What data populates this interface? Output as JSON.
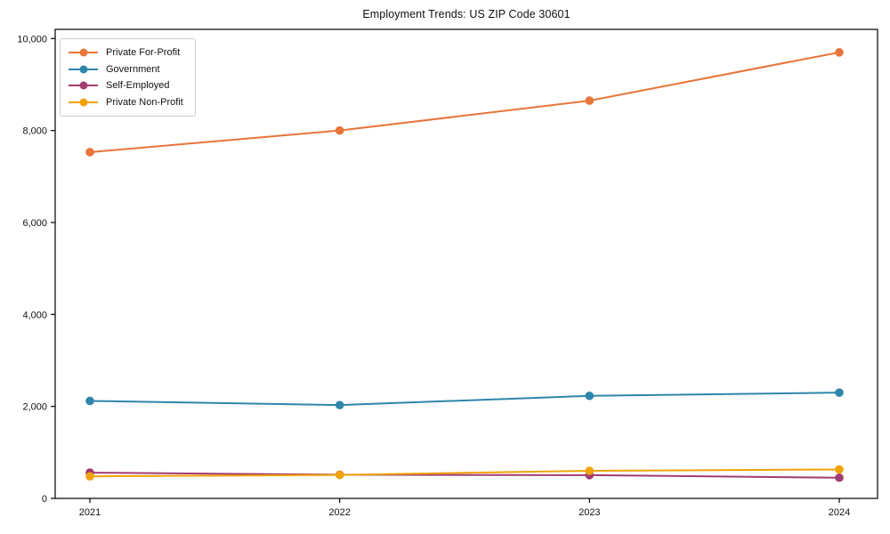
{
  "chart_data": {
    "type": "line",
    "title": "Employment Trends: US ZIP Code 30601",
    "x": [
      2021,
      2022,
      2023,
      2024
    ],
    "xtick_labels": [
      "2021",
      "2022",
      "2023",
      "2024"
    ],
    "yticks": [
      {
        "value": 0,
        "label": "0"
      },
      {
        "value": 2000,
        "label": "2,000"
      },
      {
        "value": 4000,
        "label": "4,000"
      },
      {
        "value": 6000,
        "label": "6,000"
      },
      {
        "value": 8000,
        "label": "8,000"
      },
      {
        "value": 10000,
        "label": "10,000"
      }
    ],
    "ylim": [
      0,
      10200
    ],
    "xlabel": "",
    "ylabel": "",
    "grid": false,
    "legend_position": "upper-left",
    "axis_color": "#000000",
    "series": [
      {
        "name": "Private For-Profit",
        "color": "#E8743B",
        "values": [
          7530,
          8000,
          8650,
          9700
        ]
      },
      {
        "name": "Government",
        "color": "#2E86AB",
        "values": [
          2120,
          2030,
          2230,
          2300
        ]
      },
      {
        "name": "Self-Employed",
        "color": "#A23B72",
        "values": [
          560,
          515,
          505,
          450
        ]
      },
      {
        "name": "Private Non-Profit",
        "color": "#F1A208",
        "values": [
          480,
          510,
          600,
          630
        ]
      }
    ]
  }
}
